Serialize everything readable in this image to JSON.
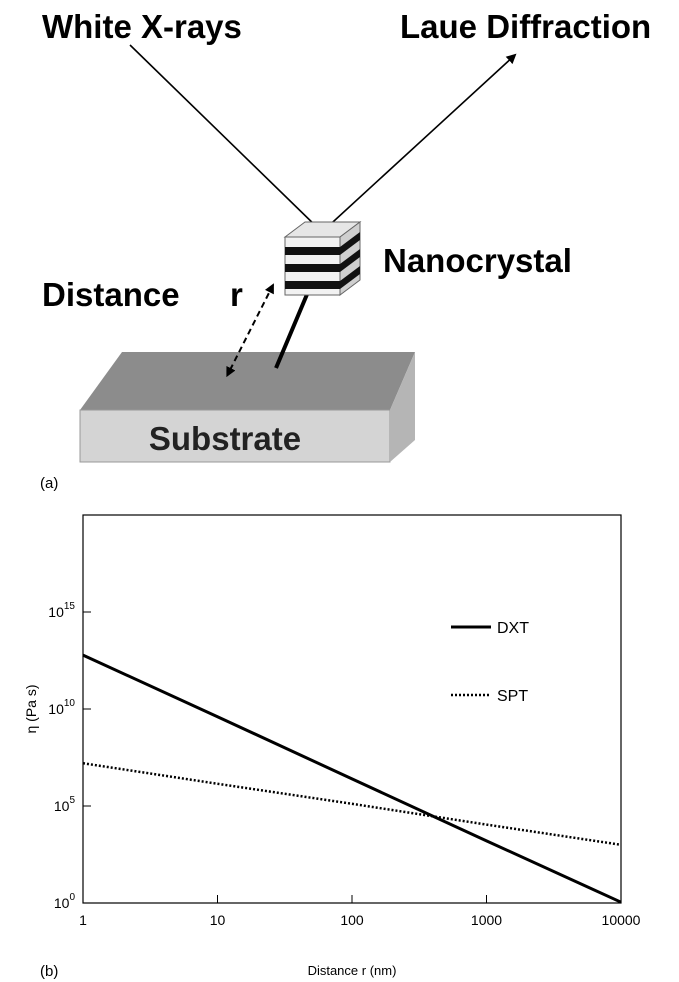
{
  "diagram": {
    "incident_label": "White X-rays",
    "diffraction_label": "Laue Diffraction",
    "crystal_label": "Nanocrystal",
    "distance_label": "Distance",
    "distance_symbol": "r",
    "substrate_label": "Substrate",
    "panel_label": "(a)"
  },
  "chart_data": {
    "type": "line",
    "panel_label": "(b)",
    "xlabel": "Distance r (nm)",
    "ylabel": "η (Pa s)",
    "xscale": "log",
    "yscale": "log",
    "x": [
      1,
      10,
      100,
      1000,
      10000
    ],
    "series": [
      {
        "name": "DXT",
        "color": "#000000",
        "dash": "solid",
        "values": [
          6000000000000,
          4000000000,
          2500000,
          1600,
          1.1
        ]
      },
      {
        "name": "SPT",
        "color": "#000000",
        "dash": "dotted",
        "values": [
          16000000,
          1400000,
          130000,
          11000,
          1000
        ]
      }
    ],
    "xlim": [
      1,
      10000
    ],
    "ylim": [
      1,
      100000000000000000000
    ],
    "xticks": [
      1,
      10,
      100,
      1000,
      10000
    ],
    "yticks": [
      {
        "value": 1,
        "label": "10^0"
      },
      {
        "value": 100000,
        "label": "10^5"
      },
      {
        "value": 10000000000,
        "label": "10^10"
      },
      {
        "value": 1000000000000000,
        "label": "10^15"
      }
    ],
    "legend": "upper right"
  }
}
